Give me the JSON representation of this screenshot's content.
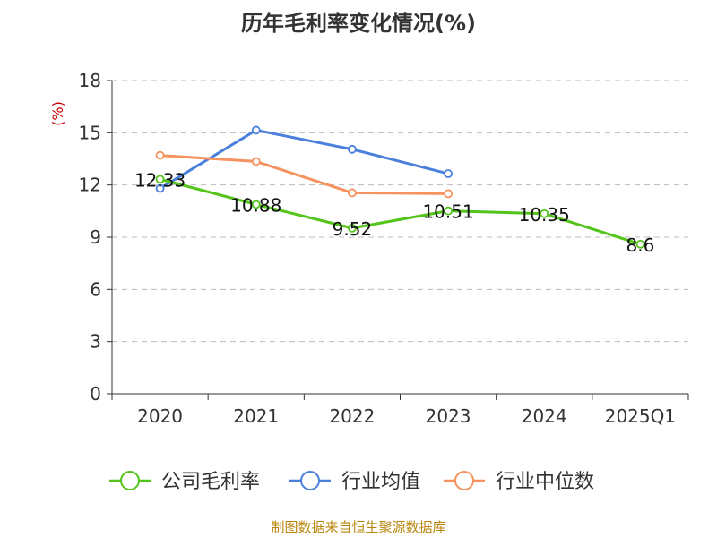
{
  "title": "历年毛利率变化情况(%)",
  "source": "制图数据来自恒生聚源数据库",
  "chart_data": {
    "type": "line",
    "title": "历年毛利率变化情况(%)",
    "ylabel": "(%)",
    "xlabel": "",
    "ylim": [
      0,
      18
    ],
    "yticks": [
      0,
      3,
      6,
      9,
      12,
      15,
      18
    ],
    "categories": [
      "2020",
      "2021",
      "2022",
      "2023",
      "2024",
      "2025Q1"
    ],
    "grid": "horizontal-dashed",
    "legend_position": "bottom",
    "series": [
      {
        "name": "公司毛利率",
        "color": "#52c41a",
        "values": [
          12.33,
          10.88,
          9.52,
          10.51,
          10.35,
          8.6
        ],
        "labels": [
          "12.33",
          "10.88",
          "9.52",
          "10.51",
          "10.35",
          "8.6"
        ]
      },
      {
        "name": "行业均值",
        "color": "#4a7fdc",
        "values": [
          11.8,
          15.15,
          14.05,
          12.65,
          null,
          null
        ]
      },
      {
        "name": "行业中位数",
        "color": "#f5925e",
        "values": [
          13.7,
          13.35,
          11.55,
          11.5,
          null,
          null
        ]
      }
    ]
  }
}
